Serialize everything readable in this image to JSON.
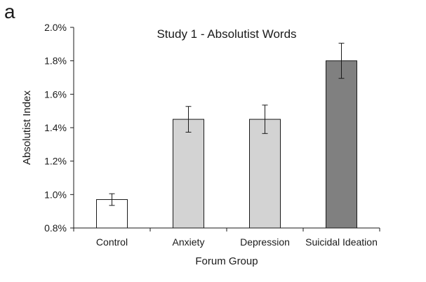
{
  "panel_label": "a",
  "chart_data": {
    "type": "bar",
    "title": "Study 1 -  Absolutist Words",
    "xlabel": "Forum Group",
    "ylabel": "Absolutist Index",
    "categories": [
      "Control",
      "Anxiety",
      "Depression",
      "Suicidal Ideation"
    ],
    "series": [
      {
        "values": [
          0.97,
          1.45,
          1.45,
          1.8
        ],
        "error": [
          0.035,
          0.077,
          0.085,
          0.105
        ],
        "colors": [
          "#ffffff",
          "#d3d3d3",
          "#d3d3d3",
          "#808080"
        ]
      }
    ],
    "ylim": [
      0.8,
      2.0
    ],
    "yticks": [
      0.8,
      1.0,
      1.2,
      1.4,
      1.6,
      1.8,
      2.0
    ],
    "ytick_labels": [
      "0.8%",
      "1.0%",
      "1.2%",
      "1.4%",
      "1.6%",
      "1.8%",
      "2.0%"
    ],
    "grid": false,
    "legend": "none"
  }
}
